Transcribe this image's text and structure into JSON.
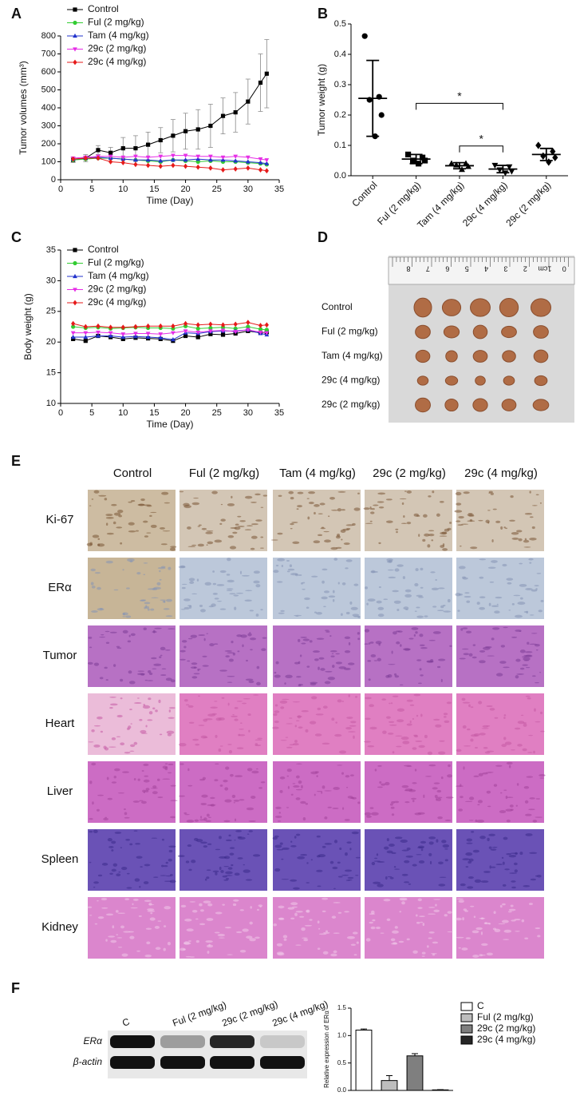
{
  "panel_labels": [
    "A",
    "B",
    "C",
    "D",
    "E",
    "F"
  ],
  "chart_data": [
    {
      "type": "line",
      "ylabel": "Tumor volumes (mm³)",
      "xlabel": "Time (Day)",
      "x": [
        2,
        4,
        6,
        8,
        10,
        12,
        14,
        16,
        18,
        20,
        22,
        24,
        26,
        28,
        30,
        32,
        33
      ],
      "xlim": [
        0,
        35
      ],
      "xticks": [
        0,
        5,
        10,
        15,
        20,
        25,
        30,
        35
      ],
      "ylim": [
        0,
        800
      ],
      "yticks": [
        0,
        100,
        200,
        300,
        400,
        500,
        600,
        700,
        800
      ],
      "legend": "upper-left",
      "series": [
        {
          "name": "Control",
          "color": "#000000",
          "marker": "square",
          "values": [
            110,
            120,
            165,
            150,
            175,
            175,
            195,
            220,
            245,
            270,
            280,
            300,
            355,
            375,
            435,
            540,
            590
          ],
          "errors": [
            15,
            20,
            25,
            30,
            60,
            70,
            70,
            70,
            90,
            100,
            110,
            120,
            100,
            110,
            125,
            160,
            190
          ]
        },
        {
          "name": "Ful (2 mg/kg)",
          "color": "#33cc33",
          "marker": "circle",
          "values": [
            110,
            115,
            120,
            120,
            115,
            110,
            105,
            100,
            110,
            105,
            100,
            105,
            100,
            100,
            95,
            90,
            85
          ]
        },
        {
          "name": "Tam (4 mg/kg)",
          "color": "#2233cc",
          "marker": "triangle",
          "values": [
            115,
            120,
            125,
            120,
            115,
            110,
            110,
            105,
            110,
            110,
            115,
            110,
            110,
            105,
            100,
            95,
            90
          ]
        },
        {
          "name": "29c (2 mg/kg)",
          "color": "#e62ee6",
          "marker": "triangle-down",
          "values": [
            120,
            125,
            130,
            130,
            125,
            130,
            125,
            130,
            135,
            135,
            130,
            130,
            125,
            130,
            125,
            115,
            110
          ]
        },
        {
          "name": "29c (4 mg/kg)",
          "color": "#e61a1a",
          "marker": "diamond",
          "values": [
            115,
            120,
            120,
            100,
            95,
            85,
            80,
            75,
            80,
            75,
            70,
            65,
            55,
            60,
            65,
            55,
            50
          ]
        }
      ]
    },
    {
      "type": "strip",
      "ylabel": "Tumor weight (g)",
      "categories": [
        "Control",
        "Ful (2 mg/kg)",
        "Tam (4 mg/kg)",
        "29c (4 mg/kg)",
        "29c (2 mg/kg)"
      ],
      "values": [
        [
          0.46,
          0.26,
          0.25,
          0.2,
          0.13
        ],
        [
          0.07,
          0.06,
          0.05,
          0.05,
          0.04
        ],
        [
          0.04,
          0.04,
          0.035,
          0.03,
          0.02
        ],
        [
          0.035,
          0.03,
          0.02,
          0.015,
          0.01
        ],
        [
          0.1,
          0.08,
          0.065,
          0.06,
          0.045
        ]
      ],
      "means": [
        0.255,
        0.055,
        0.033,
        0.022,
        0.07
      ],
      "sds": [
        0.125,
        0.015,
        0.01,
        0.012,
        0.02
      ],
      "markers": [
        "circle",
        "square",
        "triangle",
        "triangle-down",
        "diamond"
      ],
      "ylim": [
        0,
        0.5
      ],
      "yticks": [
        {
          "value": 0,
          "label": "0.0"
        },
        0.1,
        0.2,
        0.3,
        0.4,
        0.5
      ],
      "comparisons": [
        {
          "groups": [
            1,
            3
          ],
          "label": "*"
        },
        {
          "groups": [
            2,
            3
          ],
          "label": "*"
        }
      ]
    },
    {
      "type": "line",
      "ylabel": "Body weight (g)",
      "xlabel": "Time (Day)",
      "x": [
        2,
        4,
        6,
        8,
        10,
        12,
        14,
        16,
        18,
        20,
        22,
        24,
        26,
        28,
        30,
        32,
        33
      ],
      "xlim": [
        0,
        35
      ],
      "xticks": [
        0,
        5,
        10,
        15,
        20,
        25,
        30,
        35
      ],
      "ylim": [
        10,
        35
      ],
      "yticks": [
        10,
        15,
        20,
        25,
        30,
        35
      ],
      "legend": "upper-left",
      "series": [
        {
          "name": "Control",
          "color": "#000000",
          "marker": "square",
          "values": [
            20.5,
            20.2,
            21,
            20.8,
            20.5,
            20.7,
            20.6,
            20.5,
            20.2,
            21,
            20.8,
            21.3,
            21.2,
            21.4,
            21.8,
            21.5,
            21.6
          ]
        },
        {
          "name": "Ful (2 mg/kg)",
          "color": "#33cc33",
          "marker": "circle",
          "values": [
            22.5,
            22.3,
            22.4,
            22.2,
            22.3,
            22.4,
            22.3,
            22.3,
            22.2,
            22.6,
            22.2,
            22.3,
            22.4,
            22.2,
            22.5,
            22.1,
            22
          ]
        },
        {
          "name": "Tam (4 mg/kg)",
          "color": "#2233cc",
          "marker": "triangle",
          "values": [
            20.8,
            20.8,
            21,
            21,
            20.8,
            20.9,
            20.8,
            20.7,
            20.4,
            21.5,
            21.4,
            21.7,
            21.8,
            21.8,
            22,
            21.4,
            21.2
          ]
        },
        {
          "name": "29c (2 mg/kg)",
          "color": "#e62ee6",
          "marker": "triangle-down",
          "values": [
            21.5,
            21.5,
            21.6,
            21.5,
            21.3,
            21.4,
            21.4,
            21.3,
            21.5,
            21.8,
            21.6,
            21.8,
            21.9,
            21.7,
            22,
            21.6,
            21.5
          ]
        },
        {
          "name": "29c (4 mg/kg)",
          "color": "#e61a1a",
          "marker": "diamond",
          "values": [
            23,
            22.5,
            22.6,
            22.4,
            22.4,
            22.5,
            22.6,
            22.6,
            22.6,
            23,
            22.8,
            22.9,
            22.8,
            22.9,
            23.2,
            22.7,
            22.8
          ]
        }
      ]
    },
    {
      "type": "bar",
      "ylabel": "Relative expression of ERα",
      "categories": [
        "C",
        "Ful (2 mg/kg)",
        "29c (2 mg/kg)",
        "29c (4 mg/kg)"
      ],
      "values": [
        1.1,
        0.18,
        0.63,
        0.01
      ],
      "errors": [
        0.02,
        0.09,
        0.04,
        0.005
      ],
      "colors": [
        "#ffffff",
        "#bdbdbd",
        "#7f7f7f",
        "#262626"
      ],
      "ylim": [
        0,
        1.5
      ],
      "yticks": [
        {
          "value": 0,
          "label": "0.0"
        },
        0.5,
        {
          "value": 1,
          "label": "1.0"
        },
        1.5
      ],
      "legend": "right"
    }
  ],
  "photo": {
    "ruler_labels": [
      "8",
      "7",
      "6",
      "5",
      "4",
      "3",
      "2",
      "1cm",
      "0"
    ],
    "row_labels": [
      "Control",
      "Ful (2 mg/kg)",
      "Tam (4 mg/kg)",
      "29c (4 mg/kg)",
      "29c (2 mg/kg)"
    ]
  },
  "histology": {
    "columns": [
      "Control",
      "Ful (2 mg/kg)",
      "Tam (4 mg/kg)",
      "29c (2 mg/kg)",
      "29c (4 mg/kg)"
    ],
    "rows": [
      "Ki-67",
      "ERα",
      "Tumor",
      "Heart",
      "Liver",
      "Spleen",
      "Kidney"
    ]
  },
  "blot": {
    "lanes": [
      "C",
      "Ful (2 mg/kg)",
      "29c (2 mg/kg)",
      "29c (4 mg/kg)"
    ],
    "rows": [
      "ERα",
      "β-actin"
    ]
  }
}
